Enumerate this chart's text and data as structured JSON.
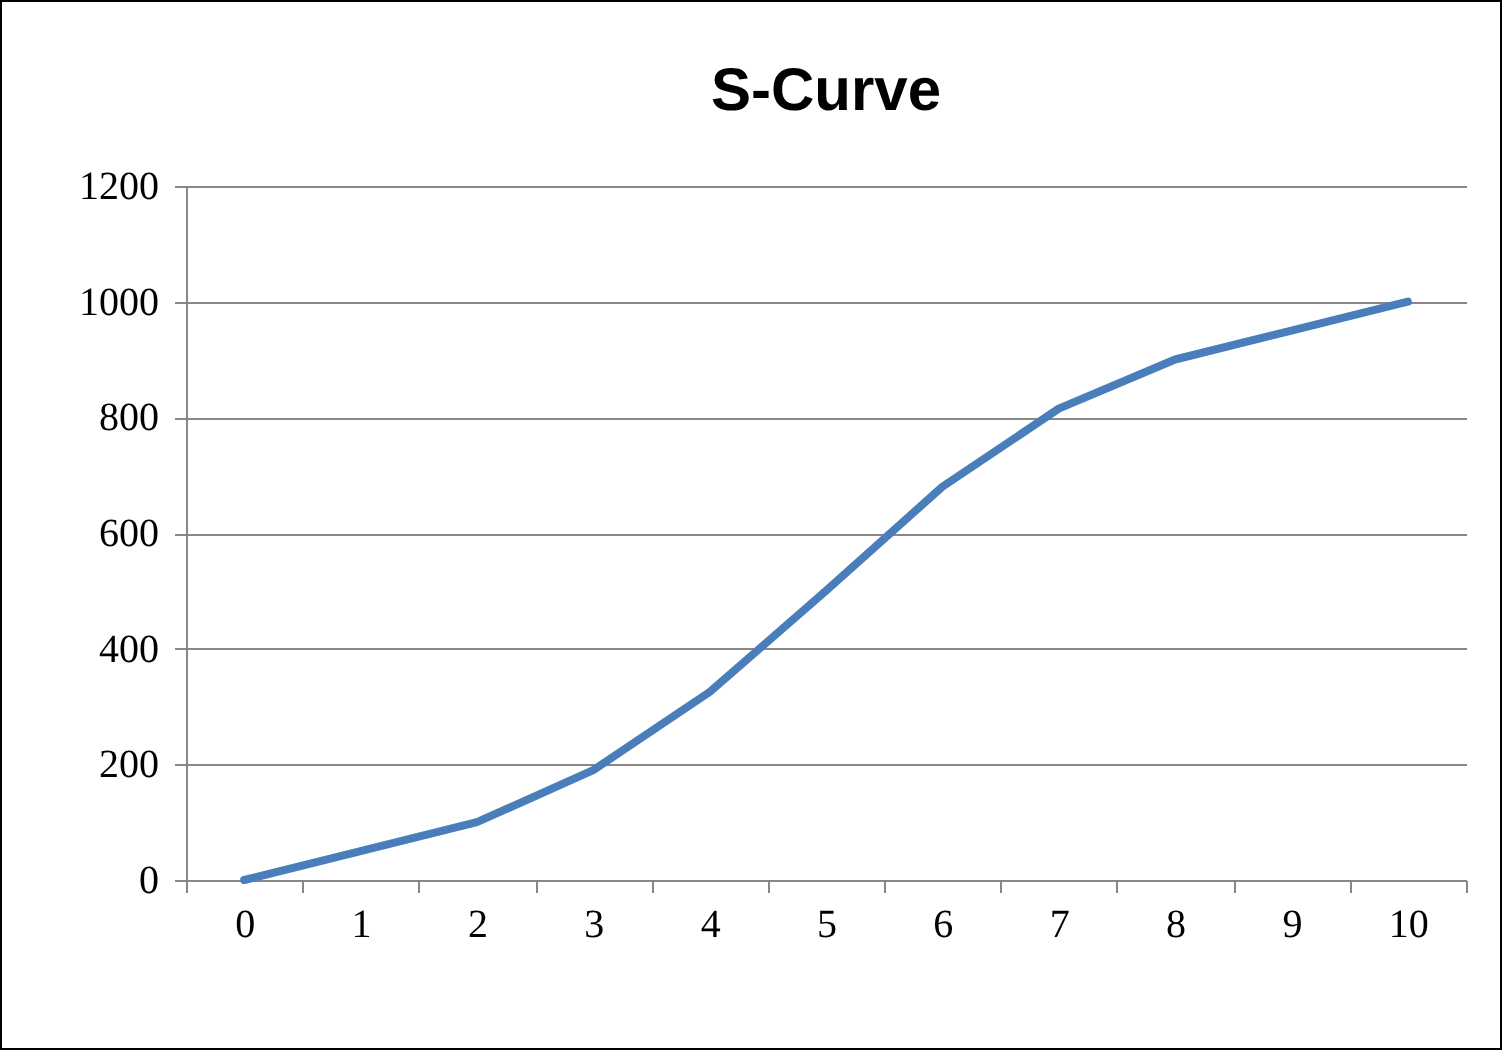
{
  "chart_data": {
    "type": "line",
    "title": "S-Curve",
    "categories": [
      "0",
      "1",
      "2",
      "3",
      "4",
      "5",
      "6",
      "7",
      "8",
      "9",
      "10"
    ],
    "series": [
      {
        "color": "#4a7ebb",
        "values": [
          0,
          50,
          100,
          190,
          325,
          500,
          680,
          815,
          900,
          950,
          1000
        ]
      }
    ],
    "ylim": [
      0,
      1200
    ],
    "yticks": [
      0,
      200,
      400,
      600,
      800,
      1000,
      1200
    ],
    "grid": "y",
    "legend": false,
    "marker": "none",
    "line_style": "solid"
  }
}
